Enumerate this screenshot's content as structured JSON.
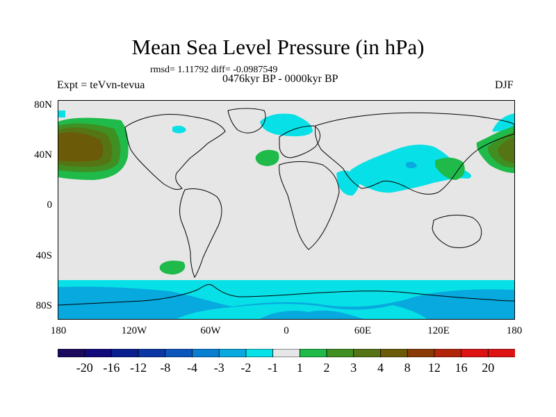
{
  "header": {
    "title": "Mean Sea Level Pressure (in hPa)",
    "stats": "rmsd= 1.11792 diff= -0.0987549",
    "period": "0476kyr BP - 0000kyr BP",
    "experiment": "Expt = teVvn-tevua",
    "season": "DJF"
  },
  "map": {
    "lat_labels": [
      "80N",
      "40N",
      "0",
      "40S",
      "80S"
    ],
    "lon_labels": [
      "180",
      "120W",
      "60W",
      "0",
      "60E",
      "120E",
      "180"
    ],
    "background_color": "#e6e6e6"
  },
  "colorbar": {
    "labels": [
      "-20",
      "-16",
      "-12",
      "-8",
      "-4",
      "-3",
      "-2",
      "-1",
      "1",
      "2",
      "3",
      "4",
      "8",
      "12",
      "16",
      "20"
    ],
    "colors": [
      "#1c0a5e",
      "#120a7a",
      "#0a1f8f",
      "#0a37a5",
      "#0a55bc",
      "#087ed2",
      "#08a9de",
      "#07e0e6",
      "#e6e6e6",
      "#1fba4a",
      "#3f8f22",
      "#557515",
      "#6b5a08",
      "#8a3a05",
      "#b3250a",
      "#dd1313"
    ]
  }
}
